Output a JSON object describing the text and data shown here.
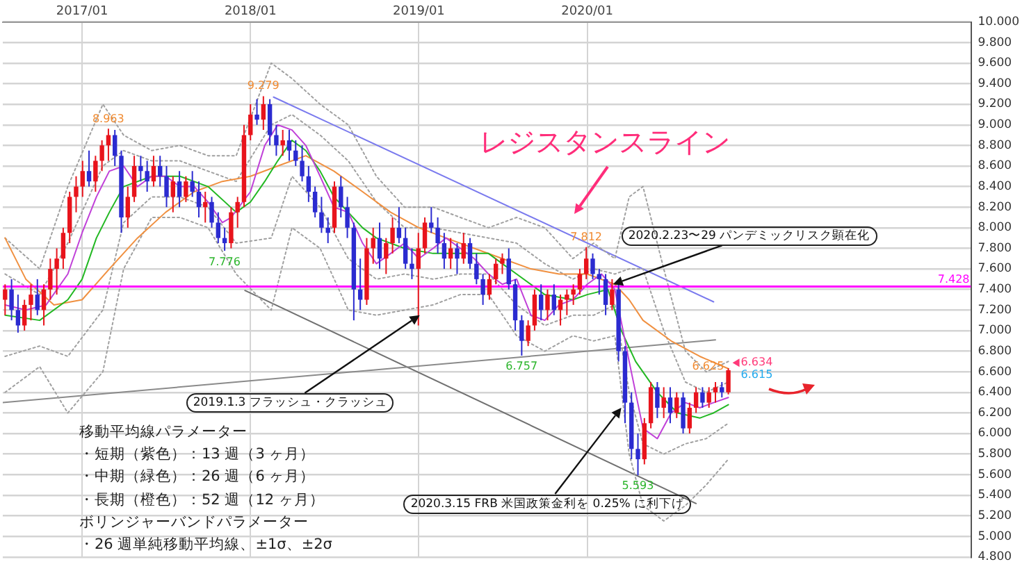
{
  "chart_data": {
    "type": "candlestick",
    "x": [
      "2016-07-18",
      "2016-08-01",
      "2016-08-15",
      "2016-08-29",
      "2016-09-12",
      "2016-09-26",
      "2016-10-10",
      "2016-10-24",
      "2016-11-07",
      "2016-11-21",
      "2016-12-05",
      "2016-12-19",
      "2017-01-02",
      "2017-01-16",
      "2017-01-30",
      "2017-02-13",
      "2017-02-27",
      "2017-03-13",
      "2017-03-27",
      "2017-04-10",
      "2017-04-24",
      "2017-05-08",
      "2017-05-22",
      "2017-06-05",
      "2017-06-19",
      "2017-07-03",
      "2017-07-17",
      "2017-07-31",
      "2017-08-14",
      "2017-08-28",
      "2017-09-11",
      "2017-09-25",
      "2017-10-09",
      "2017-10-23",
      "2017-11-06",
      "2017-11-20",
      "2017-12-04",
      "2017-12-18",
      "2018-01-01",
      "2018-01-15",
      "2018-01-29",
      "2018-02-12",
      "2018-02-26",
      "2018-03-12",
      "2018-03-26",
      "2018-04-09",
      "2018-04-23",
      "2018-05-07",
      "2018-05-21",
      "2018-06-04",
      "2018-06-18",
      "2018-07-02",
      "2018-07-16",
      "2018-07-30",
      "2018-08-13",
      "2018-08-27",
      "2018-09-10",
      "2018-09-24",
      "2018-10-08",
      "2018-10-22",
      "2018-11-05",
      "2018-11-19",
      "2018-12-03",
      "2018-12-17",
      "2018-12-31",
      "2019-01-14",
      "2019-01-28",
      "2019-02-11",
      "2019-02-25",
      "2019-03-11",
      "2019-03-25",
      "2019-04-08",
      "2019-04-22",
      "2019-05-06",
      "2019-05-20",
      "2019-06-03",
      "2019-06-17",
      "2019-07-01",
      "2019-07-15",
      "2019-07-29",
      "2019-08-12",
      "2019-08-26",
      "2019-09-09",
      "2019-09-23",
      "2019-10-07",
      "2019-10-21",
      "2019-11-04",
      "2019-11-18",
      "2019-12-02",
      "2019-12-16",
      "2019-12-30",
      "2020-01-13",
      "2020-01-27",
      "2020-02-10",
      "2020-02-24",
      "2020-03-09",
      "2020-03-23",
      "2020-04-06",
      "2020-04-20",
      "2020-05-04",
      "2020-05-18",
      "2020-06-01",
      "2020-06-15",
      "2020-06-29",
      "2020-07-13",
      "2020-07-27",
      "2020-08-10",
      "2020-08-24",
      "2020-09-07",
      "2020-09-21",
      "2020-10-05",
      "2020-10-19",
      "2020-11-02"
    ],
    "ohlc": [
      [
        7.3,
        7.45,
        7.15,
        7.4
      ],
      [
        7.4,
        7.5,
        7.1,
        7.2
      ],
      [
        7.2,
        7.35,
        6.98,
        7.05
      ],
      [
        7.05,
        7.3,
        7.0,
        7.25
      ],
      [
        7.25,
        7.45,
        7.1,
        7.35
      ],
      [
        7.35,
        7.5,
        7.15,
        7.2
      ],
      [
        7.2,
        7.45,
        7.05,
        7.4
      ],
      [
        7.4,
        7.7,
        7.3,
        7.6
      ],
      [
        7.6,
        7.8,
        7.35,
        7.7
      ],
      [
        7.7,
        8.0,
        7.6,
        7.95
      ],
      [
        7.95,
        8.35,
        7.85,
        8.3
      ],
      [
        8.3,
        8.5,
        8.15,
        8.4
      ],
      [
        8.4,
        8.65,
        8.3,
        8.55
      ],
      [
        8.55,
        8.75,
        8.4,
        8.45
      ],
      [
        8.45,
        8.7,
        8.35,
        8.65
      ],
      [
        8.65,
        8.85,
        8.55,
        8.8
      ],
      [
        8.8,
        8.963,
        8.65,
        8.9
      ],
      [
        8.9,
        8.95,
        8.6,
        8.7
      ],
      [
        8.7,
        8.75,
        7.95,
        8.1
      ],
      [
        8.1,
        8.4,
        8.0,
        8.3
      ],
      [
        8.3,
        8.7,
        8.25,
        8.6
      ],
      [
        8.6,
        8.7,
        8.45,
        8.55
      ],
      [
        8.55,
        8.65,
        8.35,
        8.45
      ],
      [
        8.45,
        8.7,
        8.4,
        8.6
      ],
      [
        8.6,
        8.7,
        8.4,
        8.5
      ],
      [
        8.5,
        8.6,
        8.2,
        8.3
      ],
      [
        8.3,
        8.5,
        8.15,
        8.45
      ],
      [
        8.45,
        8.55,
        8.2,
        8.3
      ],
      [
        8.3,
        8.5,
        8.25,
        8.45
      ],
      [
        8.45,
        8.55,
        8.3,
        8.35
      ],
      [
        8.35,
        8.45,
        8.1,
        8.2
      ],
      [
        8.2,
        8.35,
        8.05,
        8.25
      ],
      [
        8.25,
        8.3,
        8.0,
        8.05
      ],
      [
        8.05,
        8.15,
        7.85,
        7.9
      ],
      [
        7.9,
        8.0,
        7.776,
        7.85
      ],
      [
        7.85,
        8.2,
        7.8,
        8.15
      ],
      [
        8.15,
        8.3,
        8.0,
        8.25
      ],
      [
        8.25,
        9.0,
        8.2,
        8.9
      ],
      [
        8.9,
        9.2,
        8.85,
        9.1
      ],
      [
        9.1,
        9.25,
        9.0,
        9.05
      ],
      [
        9.05,
        9.279,
        8.95,
        9.2
      ],
      [
        9.2,
        9.25,
        8.8,
        8.9
      ],
      [
        8.9,
        9.0,
        8.7,
        8.8
      ],
      [
        8.8,
        8.95,
        8.7,
        8.85
      ],
      [
        8.85,
        8.95,
        8.65,
        8.75
      ],
      [
        8.75,
        8.85,
        8.6,
        8.65
      ],
      [
        8.65,
        8.8,
        8.45,
        8.5
      ],
      [
        8.5,
        8.6,
        8.25,
        8.35
      ],
      [
        8.35,
        8.4,
        8.1,
        8.15
      ],
      [
        8.15,
        8.3,
        7.95,
        8.0
      ],
      [
        8.0,
        8.1,
        7.85,
        7.95
      ],
      [
        8.0,
        8.45,
        7.95,
        8.4
      ],
      [
        8.4,
        8.5,
        8.1,
        8.2
      ],
      [
        8.2,
        8.3,
        7.9,
        8.0
      ],
      [
        8.0,
        8.05,
        7.1,
        7.4
      ],
      [
        7.4,
        7.7,
        7.2,
        7.3
      ],
      [
        7.3,
        7.9,
        7.25,
        7.8
      ],
      [
        7.8,
        8.0,
        7.65,
        7.9
      ],
      [
        7.9,
        8.05,
        7.6,
        7.7
      ],
      [
        7.7,
        7.9,
        7.55,
        7.85
      ],
      [
        7.85,
        8.1,
        7.75,
        8.0
      ],
      [
        8.0,
        8.2,
        7.85,
        7.9
      ],
      [
        7.9,
        8.0,
        7.6,
        7.65
      ],
      [
        7.65,
        7.8,
        7.5,
        7.6
      ],
      [
        7.6,
        7.95,
        7.05,
        7.8
      ],
      [
        7.8,
        8.1,
        7.75,
        8.05
      ],
      [
        8.05,
        8.2,
        7.95,
        8.0
      ],
      [
        8.0,
        8.1,
        7.75,
        7.85
      ],
      [
        7.85,
        7.95,
        7.6,
        7.7
      ],
      [
        7.7,
        7.9,
        7.6,
        7.8
      ],
      [
        7.8,
        7.85,
        7.55,
        7.7
      ],
      [
        7.7,
        7.95,
        7.65,
        7.85
      ],
      [
        7.85,
        7.9,
        7.6,
        7.65
      ],
      [
        7.65,
        7.75,
        7.45,
        7.5
      ],
      [
        7.5,
        7.55,
        7.25,
        7.35
      ],
      [
        7.35,
        7.55,
        7.3,
        7.5
      ],
      [
        7.5,
        7.7,
        7.45,
        7.65
      ],
      [
        7.65,
        7.75,
        7.55,
        7.7
      ],
      [
        7.7,
        7.8,
        7.4,
        7.45
      ],
      [
        7.45,
        7.5,
        7.0,
        7.1
      ],
      [
        7.1,
        7.15,
        6.757,
        6.9
      ],
      [
        6.9,
        7.1,
        6.85,
        7.05
      ],
      [
        7.05,
        7.4,
        7.0,
        7.35
      ],
      [
        7.35,
        7.45,
        7.1,
        7.2
      ],
      [
        7.2,
        7.4,
        7.1,
        7.35
      ],
      [
        7.35,
        7.45,
        7.15,
        7.2
      ],
      [
        7.2,
        7.35,
        7.05,
        7.3
      ],
      [
        7.3,
        7.4,
        7.15,
        7.35
      ],
      [
        7.35,
        7.45,
        7.25,
        7.4
      ],
      [
        7.4,
        7.6,
        7.35,
        7.55
      ],
      [
        7.55,
        7.812,
        7.5,
        7.7
      ],
      [
        7.7,
        7.75,
        7.5,
        7.55
      ],
      [
        7.55,
        7.6,
        7.35,
        7.5
      ],
      [
        7.5,
        7.55,
        7.15,
        7.25
      ],
      [
        7.25,
        7.5,
        7.2,
        7.4
      ],
      [
        7.4,
        7.45,
        6.7,
        6.8
      ],
      [
        6.8,
        6.85,
        6.1,
        6.3
      ],
      [
        6.3,
        6.4,
        5.75,
        5.85
      ],
      [
        5.85,
        6.0,
        5.593,
        5.75
      ],
      [
        5.75,
        6.15,
        5.7,
        6.1
      ],
      [
        6.1,
        6.5,
        6.05,
        6.45
      ],
      [
        6.45,
        6.5,
        6.15,
        6.25
      ],
      [
        6.25,
        6.45,
        6.15,
        6.35
      ],
      [
        6.35,
        6.45,
        6.1,
        6.2
      ],
      [
        6.2,
        6.4,
        6.15,
        6.35
      ],
      [
        6.35,
        6.4,
        6.0,
        6.05
      ],
      [
        6.05,
        6.3,
        6.0,
        6.25
      ],
      [
        6.25,
        6.45,
        6.2,
        6.4
      ],
      [
        6.4,
        6.45,
        6.25,
        6.3
      ],
      [
        6.3,
        6.45,
        6.25,
        6.4
      ],
      [
        6.4,
        6.5,
        6.3,
        6.45
      ],
      [
        6.45,
        6.5,
        6.35,
        6.4
      ],
      [
        6.4,
        6.634,
        6.38,
        6.615
      ]
    ],
    "colors": [
      "#e8141c",
      "#2b2bd0",
      "#2b2bd0",
      "#e8141c",
      "#e8141c",
      "#2b2bd0",
      "#e8141c",
      "#e8141c",
      "#e8141c",
      "#e8141c",
      "#e8141c",
      "#e8141c",
      "#e8141c",
      "#2b2bd0",
      "#e8141c",
      "#e8141c",
      "#e8141c",
      "#2b2bd0",
      "#2b2bd0",
      "#e8141c",
      "#e8141c",
      "#2b2bd0",
      "#2b2bd0",
      "#e8141c",
      "#2b2bd0",
      "#2b2bd0",
      "#e8141c",
      "#2b2bd0",
      "#e8141c",
      "#2b2bd0",
      "#2b2bd0",
      "#e8141c",
      "#2b2bd0",
      "#2b2bd0",
      "#2b2bd0",
      "#e8141c",
      "#e8141c",
      "#e8141c",
      "#e8141c",
      "#2b2bd0",
      "#e8141c",
      "#2b2bd0",
      "#2b2bd0",
      "#e8141c",
      "#2b2bd0",
      "#2b2bd0",
      "#2b2bd0",
      "#2b2bd0",
      "#2b2bd0",
      "#2b2bd0",
      "#2b2bd0",
      "#e8141c",
      "#2b2bd0",
      "#2b2bd0",
      "#2b2bd0",
      "#2b2bd0",
      "#e8141c",
      "#e8141c",
      "#2b2bd0",
      "#e8141c",
      "#e8141c",
      "#2b2bd0",
      "#2b2bd0",
      "#2b2bd0",
      "#e8141c",
      "#e8141c",
      "#2b2bd0",
      "#2b2bd0",
      "#2b2bd0",
      "#e8141c",
      "#2b2bd0",
      "#e8141c",
      "#2b2bd0",
      "#2b2bd0",
      "#2b2bd0",
      "#e8141c",
      "#e8141c",
      "#e8141c",
      "#2b2bd0",
      "#2b2bd0",
      "#2b2bd0",
      "#e8141c",
      "#e8141c",
      "#2b2bd0",
      "#e8141c",
      "#2b2bd0",
      "#e8141c",
      "#e8141c",
      "#e8141c",
      "#e8141c",
      "#e8141c",
      "#2b2bd0",
      "#2b2bd0",
      "#2b2bd0",
      "#e8141c",
      "#2b2bd0",
      "#2b2bd0",
      "#2b2bd0",
      "#2b2bd0",
      "#e8141c",
      "#e8141c",
      "#2b2bd0",
      "#e8141c",
      "#2b2bd0",
      "#e8141c",
      "#2b2bd0",
      "#e8141c",
      "#e8141c",
      "#2b2bd0",
      "#e8141c",
      "#e8141c",
      "#2b2bd0",
      "#e8141c"
    ],
    "series": [
      {
        "type": "line",
        "color": "#c040d8",
        "x": [
          "2016-07-18",
          "2016-09-01",
          "2016-10-15",
          "2016-12-01",
          "2017-01-01",
          "2017-02-01",
          "2017-03-01",
          "2017-04-01",
          "2017-05-01",
          "2017-06-01",
          "2017-07-01",
          "2017-08-01",
          "2017-09-01",
          "2017-10-01",
          "2017-11-01",
          "2017-11-20",
          "2018-01-01",
          "2018-02-01",
          "2018-03-01",
          "2018-04-01",
          "2018-05-01",
          "2018-06-01",
          "2018-07-01",
          "2018-08-01",
          "2018-09-01",
          "2018-10-01",
          "2018-11-01",
          "2018-12-01",
          "2019-01-01",
          "2019-02-01",
          "2019-03-01",
          "2019-04-01",
          "2019-05-01",
          "2019-06-01",
          "2019-07-01",
          "2019-08-01",
          "2019-09-01",
          "2019-10-01",
          "2019-11-01",
          "2019-12-01",
          "2020-01-01",
          "2020-02-01",
          "2020-03-01",
          "2020-04-01",
          "2020-05-01",
          "2020-06-01",
          "2020-07-01",
          "2020-08-01",
          "2020-09-01",
          "2020-10-01",
          "2020-11-02"
        ],
        "values": [
          7.25,
          7.2,
          7.25,
          7.55,
          7.95,
          8.3,
          8.55,
          8.6,
          8.4,
          8.5,
          8.5,
          8.4,
          8.4,
          8.25,
          8.05,
          8.1,
          8.35,
          8.8,
          9.0,
          8.95,
          8.8,
          8.5,
          8.2,
          8.15,
          7.85,
          7.65,
          7.75,
          7.85,
          7.7,
          7.8,
          7.9,
          7.8,
          7.7,
          7.55,
          7.45,
          7.5,
          7.15,
          7.1,
          7.25,
          7.3,
          7.45,
          7.55,
          7.4,
          6.7,
          6.05,
          5.95,
          6.2,
          6.3,
          6.25,
          6.3,
          6.35
        ]
      },
      {
        "type": "line",
        "color": "#22b822",
        "x": [
          "2016-07-18",
          "2016-10-01",
          "2016-12-01",
          "2017-01-01",
          "2017-02-01",
          "2017-03-01",
          "2017-04-01",
          "2017-06-01",
          "2017-08-01",
          "2017-10-01",
          "2017-12-01",
          "2018-01-01",
          "2018-02-01",
          "2018-03-01",
          "2018-04-01",
          "2018-05-01",
          "2018-06-01",
          "2018-07-01",
          "2018-08-01",
          "2018-09-01",
          "2018-10-01",
          "2018-12-01",
          "2019-02-01",
          "2019-04-01",
          "2019-06-01",
          "2019-07-01",
          "2019-08-01",
          "2019-10-01",
          "2019-12-01",
          "2020-01-01",
          "2020-02-15",
          "2020-03-15",
          "2020-04-15",
          "2020-06-01",
          "2020-07-15",
          "2020-09-01",
          "2020-10-01",
          "2020-11-02"
        ],
        "values": [
          7.15,
          7.1,
          7.3,
          7.5,
          7.9,
          8.15,
          8.4,
          8.5,
          8.5,
          8.4,
          8.15,
          8.25,
          8.45,
          8.65,
          8.85,
          8.75,
          8.55,
          8.3,
          8.15,
          8.0,
          7.9,
          7.8,
          7.75,
          7.75,
          7.75,
          7.65,
          7.55,
          7.35,
          7.3,
          7.35,
          7.4,
          7.0,
          6.7,
          6.4,
          6.2,
          6.15,
          6.2,
          6.28
        ]
      },
      {
        "type": "line",
        "color": "#f09040",
        "x": [
          "2016-07-18",
          "2016-09-01",
          "2016-11-01",
          "2017-01-01",
          "2017-03-01",
          "2017-05-01",
          "2017-07-01",
          "2017-09-01",
          "2017-11-01",
          "2018-01-01",
          "2018-03-01",
          "2018-05-01",
          "2018-07-01",
          "2018-09-01",
          "2018-11-01",
          "2019-01-01",
          "2019-03-01",
          "2019-05-01",
          "2019-07-01",
          "2019-09-01",
          "2019-11-01",
          "2020-01-01",
          "2020-03-01",
          "2020-04-01",
          "2020-05-01",
          "2020-07-01",
          "2020-09-01",
          "2020-11-02"
        ],
        "values": [
          7.9,
          7.5,
          7.25,
          7.3,
          7.6,
          7.9,
          8.15,
          8.35,
          8.45,
          8.5,
          8.6,
          8.7,
          8.55,
          8.35,
          8.15,
          8.0,
          7.9,
          7.8,
          7.7,
          7.6,
          7.55,
          7.55,
          7.45,
          7.3,
          7.1,
          6.9,
          6.75,
          6.63
        ]
      },
      {
        "type": "line",
        "color": "#a0a0a0",
        "line_style": "dotted",
        "x": [
          "2016-07-18",
          "2016-10-01",
          "2016-12-01",
          "2017-02-15",
          "2017-04-01",
          "2017-06-01",
          "2017-08-01",
          "2017-10-01",
          "2017-12-01",
          "2018-02-15",
          "2018-04-01",
          "2018-06-01",
          "2018-08-01",
          "2018-10-01",
          "2018-12-01",
          "2019-02-01",
          "2019-04-01",
          "2019-06-01",
          "2019-08-01",
          "2019-10-01",
          "2019-12-01",
          "2020-01-15",
          "2020-03-01",
          "2020-04-01",
          "2020-05-01",
          "2020-06-15",
          "2020-08-01",
          "2020-09-15",
          "2020-11-02"
        ],
        "values": [
          7.9,
          7.6,
          8.4,
          9.2,
          8.9,
          8.75,
          8.8,
          8.7,
          8.7,
          9.6,
          9.45,
          9.2,
          9.0,
          8.5,
          8.2,
          8.2,
          8.1,
          8.0,
          8.1,
          8.0,
          7.7,
          7.85,
          7.7,
          8.3,
          8.4,
          7.6,
          6.8,
          6.6,
          6.7
        ]
      },
      {
        "type": "line",
        "color": "#a0a0a0",
        "line_style": "dotted",
        "x": [
          "2016-07-18",
          "2016-10-01",
          "2016-12-01",
          "2017-02-15",
          "2017-04-01",
          "2017-06-01",
          "2017-08-01",
          "2017-10-01",
          "2017-12-01",
          "2018-02-15",
          "2018-04-01",
          "2018-06-01",
          "2018-08-01",
          "2018-10-01",
          "2018-12-01",
          "2019-02-01",
          "2019-04-01",
          "2019-06-01",
          "2019-08-01",
          "2019-10-01",
          "2019-12-01",
          "2020-01-15",
          "2020-03-01",
          "2020-04-01",
          "2020-05-01",
          "2020-06-15",
          "2020-08-01",
          "2020-09-15",
          "2020-11-02"
        ],
        "values": [
          7.55,
          7.35,
          7.85,
          8.6,
          8.75,
          8.65,
          8.65,
          8.55,
          8.45,
          9.0,
          9.1,
          8.9,
          8.65,
          8.25,
          8.0,
          8.0,
          7.95,
          7.9,
          7.85,
          7.65,
          7.5,
          7.6,
          7.55,
          7.6,
          7.6,
          7.0,
          6.5,
          6.4,
          6.5
        ]
      },
      {
        "type": "line",
        "color": "#a0a0a0",
        "line_style": "dotted",
        "x": [
          "2016-07-18",
          "2016-10-01",
          "2016-12-01",
          "2017-02-15",
          "2017-04-01",
          "2017-06-01",
          "2017-08-01",
          "2017-10-01",
          "2017-12-01",
          "2018-02-15",
          "2018-04-01",
          "2018-06-01",
          "2018-08-01",
          "2018-10-01",
          "2018-12-01",
          "2019-02-01",
          "2019-04-01",
          "2019-06-01",
          "2019-08-01",
          "2019-10-01",
          "2019-12-01",
          "2020-01-15",
          "2020-03-01",
          "2020-04-01",
          "2020-05-01",
          "2020-06-15",
          "2020-08-01",
          "2020-09-15",
          "2020-11-02"
        ],
        "values": [
          6.75,
          6.85,
          6.75,
          7.2,
          8.05,
          8.3,
          8.3,
          8.2,
          7.85,
          7.9,
          8.5,
          8.2,
          7.7,
          7.5,
          7.55,
          7.5,
          7.55,
          7.55,
          7.25,
          7.05,
          7.15,
          7.15,
          7.25,
          6.4,
          5.9,
          5.8,
          5.9,
          5.95,
          6.1
        ]
      },
      {
        "type": "line",
        "color": "#a0a0a0",
        "line_style": "dotted",
        "x": [
          "2016-07-18",
          "2016-10-01",
          "2016-12-01",
          "2017-02-15",
          "2017-04-01",
          "2017-06-01",
          "2017-08-01",
          "2017-10-01",
          "2017-12-01",
          "2018-02-15",
          "2018-04-01",
          "2018-06-01",
          "2018-08-01",
          "2018-10-01",
          "2018-12-01",
          "2019-02-01",
          "2019-04-01",
          "2019-06-01",
          "2019-08-01",
          "2019-10-01",
          "2019-12-01",
          "2020-01-15",
          "2020-03-01",
          "2020-04-01",
          "2020-05-01",
          "2020-06-15",
          "2020-08-01",
          "2020-09-15",
          "2020-11-02"
        ],
        "values": [
          6.4,
          6.65,
          6.2,
          6.6,
          7.6,
          8.1,
          8.1,
          8.0,
          7.55,
          7.2,
          8.0,
          7.8,
          7.2,
          7.15,
          7.2,
          7.25,
          7.35,
          7.35,
          6.95,
          6.8,
          6.95,
          6.9,
          6.95,
          5.8,
          5.3,
          5.15,
          5.3,
          5.5,
          5.75
        ]
      },
      {
        "type": "line",
        "color": "#7a7aee",
        "x": [
          "2018-02-20",
          "2020-10-01"
        ],
        "values": [
          9.27,
          7.28
        ]
      },
      {
        "type": "line",
        "color": "#8a8a8a",
        "x": [
          "2016-07-13",
          "2020-10-05"
        ],
        "values": [
          6.3,
          6.91
        ]
      },
      {
        "type": "line",
        "color": "#707070",
        "x": [
          "2017-12-20",
          "2020-08-24"
        ],
        "values": [
          7.39,
          5.32
        ]
      }
    ],
    "ref_lines": [
      {
        "axis": "y",
        "value": 7.428,
        "label": "7.428",
        "color": "#ff00ff"
      }
    ],
    "annotations": [
      "レジスタンスライン",
      "移動平均線パラメーター",
      "・短期（紫色）：13 週（3 ヶ月）",
      "・中期（緑色）：26 週（6 ヶ月）",
      "・長期（橙色）：52 週（12 ヶ月）",
      "ボリンジャーバンドパラメーター",
      "・26 週単純移動平均線、±1σ、±2σ",
      {
        "text": "2020.2.23〜29 パンデミックリスク顕在化",
        "x": "2020-02-26",
        "y": 7.45
      },
      {
        "text": "2019.1.3 フラッシュ・クラッシュ",
        "x": "2019-01-03",
        "y": 7.15
      },
      {
        "text": "2020.3.15 FRB 米国政策金利を 0.25% に利下げ",
        "x": "2020-03-15",
        "y": 6.25
      },
      {
        "text": "8.963",
        "x": "2017-02-27",
        "y": 8.963
      },
      {
        "text": "9.279",
        "x": "2018-01-29",
        "y": 9.279
      },
      {
        "text": "7.776",
        "x": "2017-11-06",
        "y": 7.776
      },
      {
        "text": "6.757",
        "x": "2019-08-12",
        "y": 6.757
      },
      {
        "text": "7.812",
        "x": "2019-12-30",
        "y": 7.812
      },
      {
        "text": "5.593",
        "x": "2020-04-20",
        "y": 5.593
      },
      {
        "text": "6.625",
        "x": "2020-11-02",
        "y": 6.625
      },
      {
        "text": "6.634",
        "x": "2020-11-02",
        "y": 6.634
      },
      {
        "text": "6.615",
        "x": "2020-11-02",
        "y": 6.615
      }
    ],
    "xlim": [
      "2016-07-13",
      "2022-04-12"
    ],
    "xticks": [
      {
        "value": "2017-01-01",
        "label": "2017/01"
      },
      {
        "value": "2018-01-01",
        "label": "2018/01"
      },
      {
        "value": "2019-01-01",
        "label": "2019/01"
      },
      {
        "value": "2020-01-01",
        "label": "2020/01"
      }
    ],
    "ylim": [
      4.8,
      10
    ],
    "yticks": [
      {
        "value": 4.8,
        "label": "4.800"
      },
      {
        "value": 5.0,
        "label": "5.000"
      },
      {
        "value": 5.2,
        "label": "5.200"
      },
      {
        "value": 5.4,
        "label": "5.400"
      },
      {
        "value": 5.6,
        "label": "5.600"
      },
      {
        "value": 5.8,
        "label": "5.800"
      },
      {
        "value": 6.0,
        "label": "6.000"
      },
      {
        "value": 6.2,
        "label": "6.200"
      },
      {
        "value": 6.4,
        "label": "6.400"
      },
      {
        "value": 6.6,
        "label": "6.600"
      },
      {
        "value": 6.8,
        "label": "6.800"
      },
      {
        "value": 7.0,
        "label": "7.000"
      },
      {
        "value": 7.2,
        "label": "7.200"
      },
      {
        "value": 7.4,
        "label": "7.400"
      },
      {
        "value": 7.6,
        "label": "7.600"
      },
      {
        "value": 7.8,
        "label": "7.800"
      },
      {
        "value": 8.0,
        "label": "8.000"
      },
      {
        "value": 8.2,
        "label": "8.200"
      },
      {
        "value": 8.4,
        "label": "8.400"
      },
      {
        "value": 8.6,
        "label": "8.600"
      },
      {
        "value": 8.8,
        "label": "8.800"
      },
      {
        "value": 9.0,
        "label": "9.000"
      },
      {
        "value": 9.2,
        "label": "9.200"
      },
      {
        "value": 9.4,
        "label": "9.400"
      },
      {
        "value": 9.6,
        "label": "9.600"
      },
      {
        "value": 9.8,
        "label": "9.800"
      },
      {
        "value": 10.0,
        "label": "10.000"
      }
    ],
    "grid": true,
    "marker": "none"
  }
}
